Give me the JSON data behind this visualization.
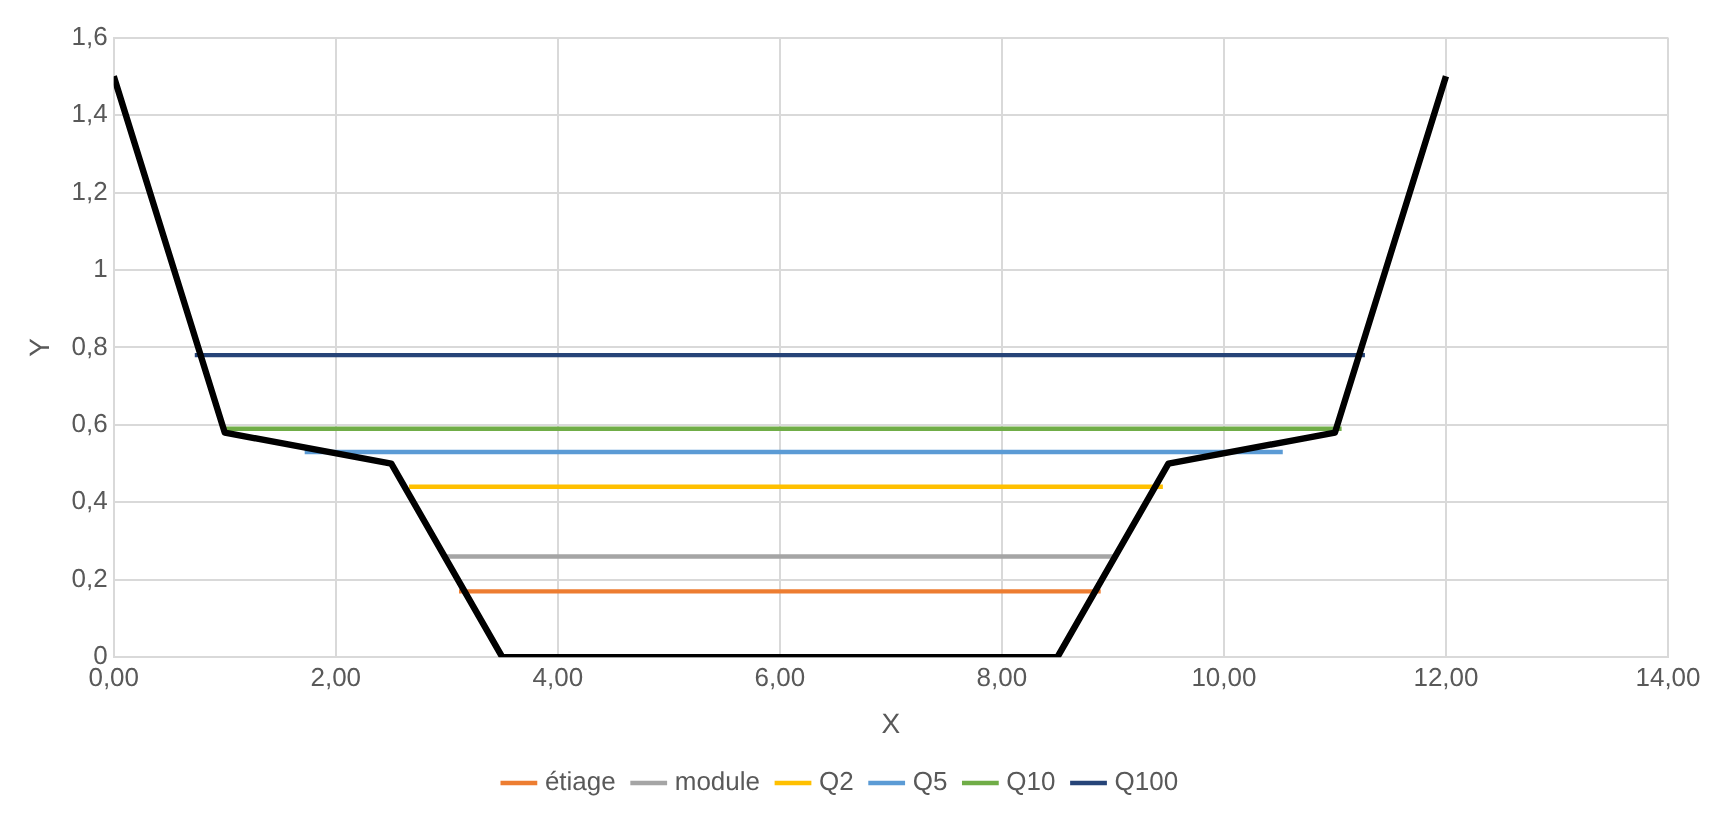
{
  "chart_data": {
    "type": "line",
    "xlabel": "X",
    "ylabel": "Y",
    "xlim": [
      0,
      14
    ],
    "xticks": [
      {
        "value": 0,
        "label": "0,00"
      },
      {
        "value": 2,
        "label": "2,00"
      },
      {
        "value": 4,
        "label": "4,00"
      },
      {
        "value": 6,
        "label": "6,00"
      },
      {
        "value": 8,
        "label": "8,00"
      },
      {
        "value": 10,
        "label": "10,00"
      },
      {
        "value": 12,
        "label": "12,00"
      },
      {
        "value": 14,
        "label": "14,00"
      }
    ],
    "ylim": [
      0,
      1.6
    ],
    "yticks": [
      0,
      {
        "value": 0.2,
        "label": "0,2"
      },
      {
        "value": 0.4,
        "label": "0,4"
      },
      {
        "value": 0.6,
        "label": "0,6"
      },
      {
        "value": 0.8,
        "label": "0,8"
      },
      1,
      {
        "value": 1.2,
        "label": "1,2"
      },
      {
        "value": 1.4,
        "label": "1,4"
      },
      {
        "value": 1.6,
        "label": "1,6"
      }
    ],
    "grid": true,
    "legend": "bottom",
    "marker": "none",
    "series": [
      {
        "color": "#000000",
        "x": [
          0,
          1,
          2.5,
          3.5,
          8.5,
          9.5,
          11,
          12
        ],
        "values": [
          1.5,
          0.58,
          0.5,
          0,
          0,
          0.5,
          0.58,
          1.5
        ]
      },
      {
        "name": "étiage",
        "color": "#ed7d31",
        "x": [
          3.11,
          8.89
        ],
        "values": [
          0.17,
          0.17
        ]
      },
      {
        "name": "module",
        "color": "#a5a5a5",
        "x": [
          2.97,
          9.04
        ],
        "values": [
          0.26,
          0.26
        ]
      },
      {
        "name": "Q2",
        "color": "#ffc000",
        "x": [
          2.66,
          9.45
        ],
        "values": [
          0.44,
          0.44
        ]
      },
      {
        "name": "Q5",
        "color": "#5b9bd5",
        "x": [
          1.72,
          10.53
        ],
        "values": [
          0.53,
          0.53
        ]
      },
      {
        "name": "Q10",
        "color": "#70ad47",
        "x": [
          0.99,
          11.06
        ],
        "values": [
          0.59,
          0.59
        ]
      },
      {
        "name": "Q100",
        "color": "#264478",
        "x": [
          0.73,
          11.27
        ],
        "values": [
          0.78,
          0.78
        ]
      }
    ]
  }
}
